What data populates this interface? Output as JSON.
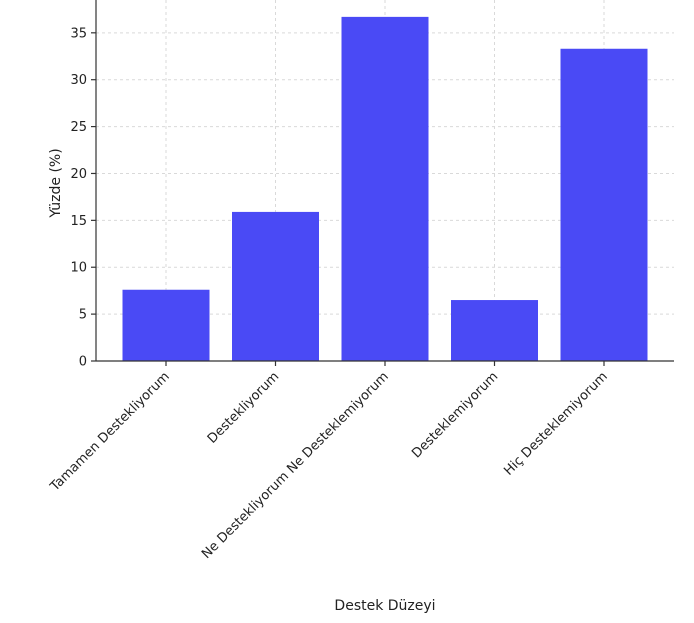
{
  "chart_data": {
    "type": "bar",
    "title": "",
    "xlabel": "Destek Düzeyi",
    "ylabel": "Yüzde (%)",
    "categories": [
      "Tamamen Destekliyorum",
      "Destekliyorum",
      "Ne Destekliyorum Ne Desteklemiyorum",
      "Desteklemiyorum",
      "Hiç Desteklemiyorum"
    ],
    "values": [
      7.6,
      15.9,
      36.7,
      6.5,
      33.3
    ],
    "ylim": [
      0,
      38.5
    ],
    "yticks": [
      0,
      5,
      10,
      15,
      20,
      25,
      30,
      35
    ],
    "grid": true,
    "bar_color": "#4a4af5"
  }
}
